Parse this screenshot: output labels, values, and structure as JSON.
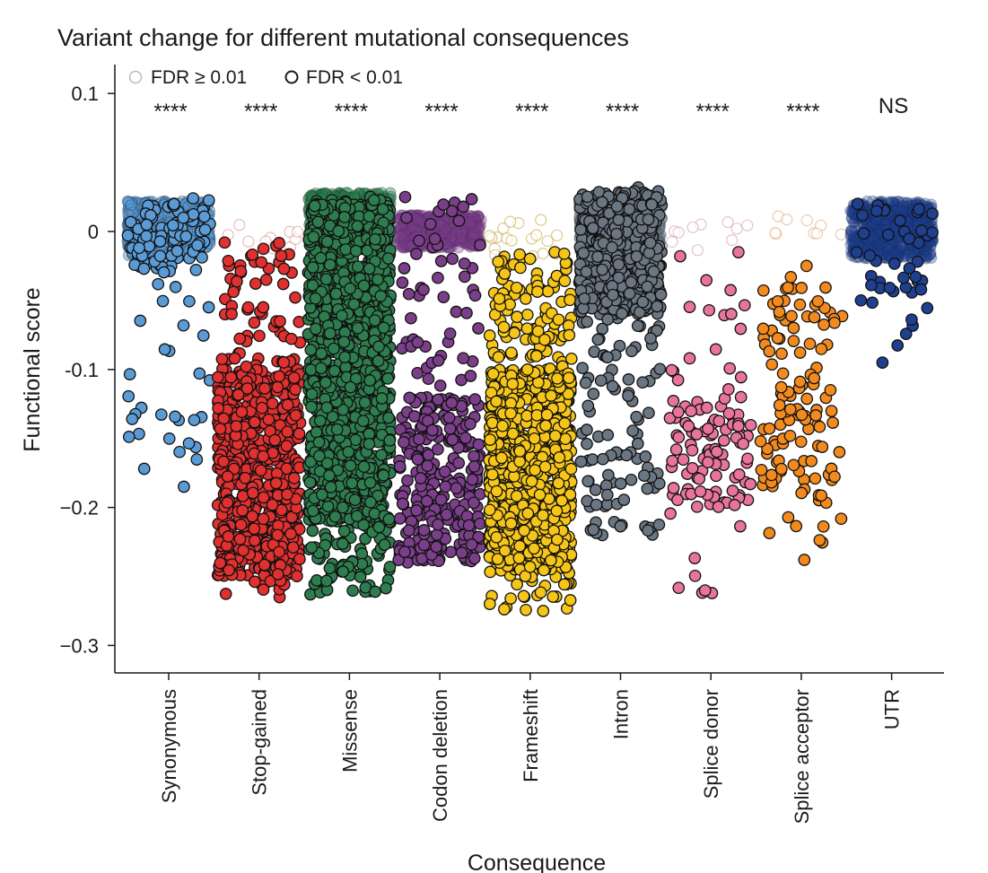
{
  "chart_data": {
    "type": "scatter",
    "title": "Variant change for different mutational consequences",
    "xlabel": "Consequence",
    "ylabel": "Functional score",
    "ylim": [
      -0.32,
      0.12
    ],
    "yticks": [
      {
        "value": 0.1,
        "label": "0.1"
      },
      {
        "value": 0,
        "label": "0"
      },
      {
        "value": -0.1,
        "label": "-0.1"
      },
      {
        "value": -0.2,
        "label": "−0.2"
      },
      {
        "value": -0.3,
        "label": "−0.3"
      }
    ],
    "legend": {
      "position": "top-left",
      "entries": [
        {
          "label": "FDR ≥ 0.01",
          "style": "faint"
        },
        {
          "label": "FDR < 0.01",
          "style": "outlined"
        }
      ]
    },
    "categories": [
      {
        "name": "Synonymous",
        "color": "#5b9bd5",
        "significance": "****",
        "n_sig": 130,
        "n_ns": 600,
        "ns_range": [
          -0.018,
          0.022
        ],
        "sig_range": [
          -0.185,
          0.024
        ],
        "ns_opacity": 0.45,
        "ns_stroke": "#2a4a6a",
        "dense_band": [
          -0.03,
          0.02
        ]
      },
      {
        "name": "Stop-gained",
        "color": "#e03030",
        "significance": "****",
        "n_sig": 760,
        "n_ns": 10,
        "ns_range": [
          -0.015,
          0.005
        ],
        "sig_range": [
          -0.265,
          -0.008
        ],
        "ns_opacity": 0.25,
        "ns_stroke": "#e08080",
        "dense_band": [
          -0.25,
          -0.1
        ]
      },
      {
        "name": "Missense",
        "color": "#2e7d4f",
        "significance": "****",
        "n_sig": 1500,
        "n_ns": 700,
        "ns_range": [
          -0.01,
          0.028
        ],
        "sig_range": [
          -0.263,
          0.025
        ],
        "ns_opacity": 0.4,
        "ns_stroke": "#1a5030",
        "dense_band": [
          -0.21,
          0.02
        ]
      },
      {
        "name": "Codon deletion",
        "color": "#7b3f8a",
        "significance": "****",
        "n_sig": 330,
        "n_ns": 500,
        "ns_range": [
          -0.012,
          0.012
        ],
        "sig_range": [
          -0.238,
          0.025
        ],
        "ns_opacity": 0.35,
        "ns_stroke": "#5a2a66",
        "dense_band": [
          -0.24,
          -0.12
        ]
      },
      {
        "name": "Frameshift",
        "color": "#f5c518",
        "significance": "****",
        "n_sig": 1100,
        "n_ns": 18,
        "ns_range": [
          -0.02,
          0.01
        ],
        "sig_range": [
          -0.275,
          -0.015
        ],
        "ns_opacity": 0.3,
        "ns_stroke": "#c0a030",
        "dense_band": [
          -0.245,
          -0.1
        ]
      },
      {
        "name": "Intron",
        "color": "#6b7683",
        "significance": "****",
        "n_sig": 560,
        "n_ns": 600,
        "ns_range": [
          -0.015,
          0.025
        ],
        "sig_range": [
          -0.22,
          0.032
        ],
        "ns_opacity": 0.4,
        "ns_stroke": "#3a4450",
        "dense_band": [
          -0.06,
          0.03
        ]
      },
      {
        "name": "Splice donor",
        "color": "#e8749e",
        "significance": "****",
        "n_sig": 115,
        "n_ns": 10,
        "ns_range": [
          -0.015,
          0.008
        ],
        "sig_range": [
          -0.262,
          -0.015
        ],
        "ns_opacity": 0.25,
        "ns_stroke": "#d090a8",
        "dense_band": [
          -0.2,
          -0.12
        ]
      },
      {
        "name": "Splice acceptor",
        "color": "#f28a1e",
        "significance": "****",
        "n_sig": 125,
        "n_ns": 9,
        "ns_range": [
          -0.005,
          0.012
        ],
        "sig_range": [
          -0.238,
          -0.025
        ],
        "ns_opacity": 0.25,
        "ns_stroke": "#e0a070",
        "dense_band": [
          -0.2,
          -0.04
        ]
      },
      {
        "name": "UTR",
        "color": "#1f3f8f",
        "significance": "NS",
        "n_sig": 45,
        "n_ns": 600,
        "ns_range": [
          -0.02,
          0.022
        ],
        "sig_range": [
          -0.095,
          0.02
        ],
        "ns_opacity": 0.3,
        "ns_stroke": "#142a60",
        "dense_band": [
          -0.045,
          0.02
        ]
      }
    ]
  }
}
